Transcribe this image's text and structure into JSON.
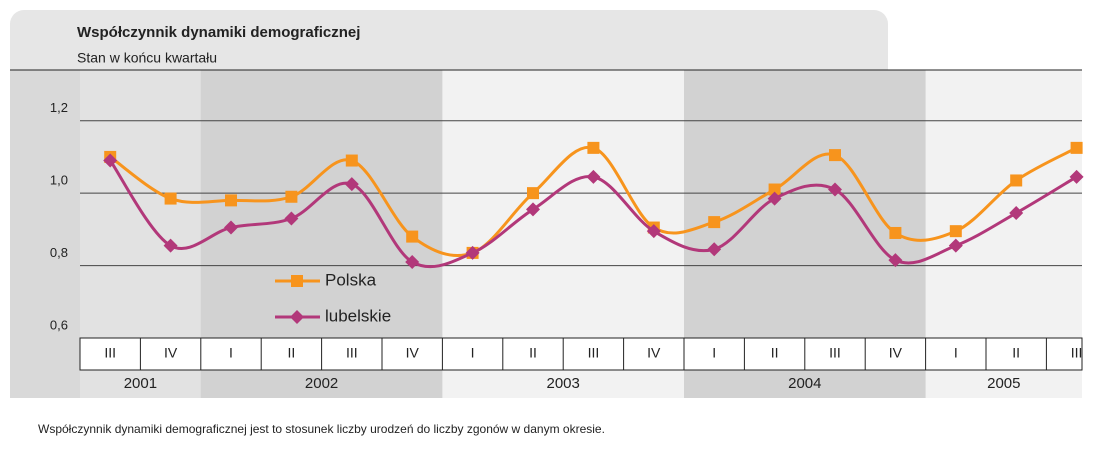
{
  "chart_data": {
    "type": "line",
    "title": "Współczynnik dynamiki demograficznej",
    "subtitle": "Stan w końcu kwartału",
    "categories": [
      "III",
      "IV",
      "I",
      "II",
      "III",
      "IV",
      "I",
      "II",
      "III",
      "IV",
      "I",
      "II",
      "III",
      "IV",
      "I",
      "II",
      "III"
    ],
    "x_groups": [
      {
        "label": "2001",
        "span": 2
      },
      {
        "label": "2002",
        "span": 4
      },
      {
        "label": "2003",
        "span": 4
      },
      {
        "label": "2004",
        "span": 4
      },
      {
        "label": "2005",
        "span": 3
      }
    ],
    "series": [
      {
        "name": "Polska",
        "color": "#f7941d",
        "marker": "square",
        "values": [
          1.1,
          0.985,
          0.98,
          0.99,
          1.09,
          0.88,
          0.835,
          1.0,
          1.125,
          0.905,
          0.92,
          1.01,
          1.105,
          0.89,
          0.895,
          1.035,
          1.125
        ]
      },
      {
        "name": "lubelskie",
        "color": "#b2387a",
        "marker": "diamond",
        "values": [
          1.09,
          0.855,
          0.905,
          0.93,
          1.025,
          0.81,
          0.835,
          0.955,
          1.045,
          0.895,
          0.845,
          0.985,
          1.01,
          0.815,
          0.855,
          0.945,
          1.045
        ]
      }
    ],
    "ylim": [
      0.6,
      1.34
    ],
    "yticks": [
      {
        "value": 0.6,
        "label": "0,6"
      },
      {
        "value": 0.8,
        "label": "0,8"
      },
      {
        "value": 1.0,
        "label": "1,0"
      },
      {
        "value": 1.2,
        "label": "1,2"
      }
    ],
    "grid": true,
    "smooth": true,
    "footnote": "Współczynnik dynamiki demograficznej jest to stosunek liczby urodzeń do liczby zgonów w danym okresie."
  }
}
